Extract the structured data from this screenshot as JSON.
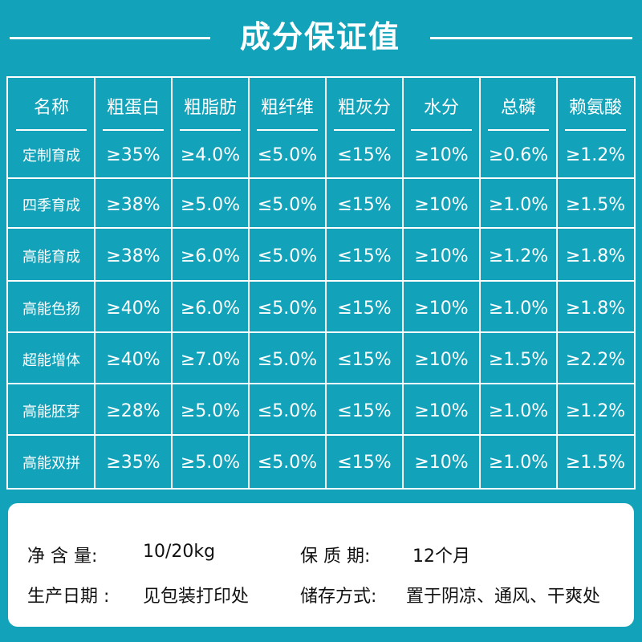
{
  "title": "成分保证值",
  "colors": {
    "background": "#12a3ba",
    "line": "#ffffff",
    "panel": "#ffffff",
    "panel_text": "#111111"
  },
  "table": {
    "headers": [
      "名称",
      "粗蛋白",
      "粗脂肪",
      "粗纤维",
      "粗灰分",
      "水分",
      "总磷",
      "赖氨酸"
    ],
    "rows": [
      {
        "name": "定制育成",
        "values": [
          "≥35%",
          "≥4.0%",
          "≤5.0%",
          "≤15%",
          "≥10%",
          "≥0.6%",
          "≥1.2%"
        ]
      },
      {
        "name": "四季育成",
        "values": [
          "≥38%",
          "≥5.0%",
          "≤5.0%",
          "≤15%",
          "≥10%",
          "≥1.0%",
          "≥1.5%"
        ]
      },
      {
        "name": "高能育成",
        "values": [
          "≥38%",
          "≥6.0%",
          "≤5.0%",
          "≤15%",
          "≥10%",
          "≥1.2%",
          "≥1.8%"
        ]
      },
      {
        "name": "高能色扬",
        "values": [
          "≥40%",
          "≥6.0%",
          "≤5.0%",
          "≤15%",
          "≥10%",
          "≥1.0%",
          "≥1.8%"
        ]
      },
      {
        "name": "超能增体",
        "values": [
          "≥40%",
          "≥7.0%",
          "≤5.0%",
          "≤15%",
          "≥10%",
          "≥1.5%",
          "≥2.2%"
        ]
      },
      {
        "name": "高能胚芽",
        "values": [
          "≥28%",
          "≥5.0%",
          "≤5.0%",
          "≤15%",
          "≥10%",
          "≥1.0%",
          "≥1.2%"
        ]
      },
      {
        "name": "高能双拼",
        "values": [
          "≥35%",
          "≥5.0%",
          "≤5.0%",
          "≤15%",
          "≥10%",
          "≥1.0%",
          "≥1.5%"
        ]
      }
    ]
  },
  "info": {
    "net_weight_label": "净 含 量:",
    "net_weight_value": "10/20kg",
    "shelf_life_label": "保 质 期:",
    "shelf_life_value": "12个月",
    "production_date_label": "生产日期 :",
    "production_date_value": "见包装打印处",
    "storage_label": "储存方式:",
    "storage_value": "置于阴凉、通风、干爽处"
  }
}
